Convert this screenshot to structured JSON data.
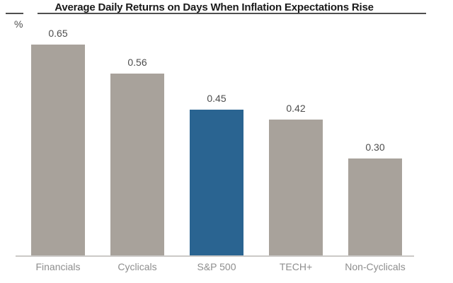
{
  "chart_data": {
    "type": "bar",
    "title": "Average Daily Returns on Days When Inflation Expectations Rise",
    "ylabel": "%",
    "categories": [
      "Financials",
      "Cyclicals",
      "S&P 500",
      "TECH+",
      "Non-Cyclicals"
    ],
    "values": [
      0.65,
      0.56,
      0.45,
      0.42,
      0.3
    ],
    "value_labels": [
      "0.65",
      "0.56",
      "0.45",
      "0.42",
      "0.30"
    ],
    "ylim": [
      0,
      0.7
    ],
    "grid": false,
    "legend": "none",
    "highlight_index": 2,
    "colors": {
      "bar": "#A8A29B",
      "highlight": "#2A6491",
      "value_label": "#4D4D4D",
      "category_label": "#8E8E8E",
      "title": "#1A1A1A",
      "rule": "#4F4F4F",
      "axis_line": "#CBC9C7"
    }
  }
}
